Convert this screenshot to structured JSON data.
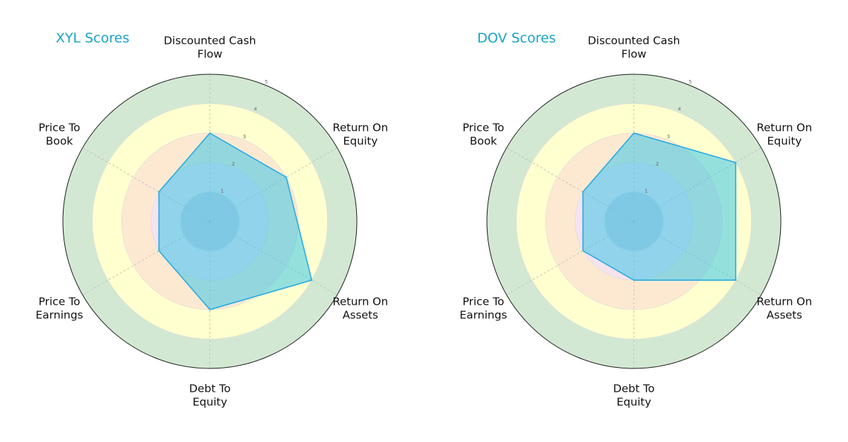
{
  "chart_data": [
    {
      "type": "radar",
      "title": "XYL Scores",
      "categories": [
        "Discounted Cash\nFlow",
        "Return On\nEquity",
        "Return On\nAssets",
        "Debt To\nEquity",
        "Price To\nEarnings",
        "Price To\nBook"
      ],
      "values": [
        3,
        3,
        4,
        3,
        2,
        2
      ],
      "rlim": [
        0,
        5
      ],
      "r_ticks": [
        "1",
        "2",
        "3",
        "4",
        "5"
      ],
      "grid": true,
      "colors": {
        "line": "#29abe2",
        "fill": "#3cc6e8",
        "band_1": "#c5c5dd",
        "band_2": "#f6e3ee",
        "band_3": "#fde9d2",
        "band_4": "#ffffcf",
        "band_5": "#d3e8d3",
        "title": "#1aa3c8"
      }
    },
    {
      "type": "radar",
      "title": "DOV Scores",
      "categories": [
        "Discounted Cash\nFlow",
        "Return On\nEquity",
        "Return On\nAssets",
        "Debt To\nEquity",
        "Price To\nEarnings",
        "Price To\nBook"
      ],
      "values": [
        3,
        4,
        4,
        2,
        2,
        2
      ],
      "rlim": [
        0,
        5
      ],
      "r_ticks": [
        "1",
        "2",
        "3",
        "4",
        "5"
      ],
      "grid": true,
      "colors": {
        "line": "#29abe2",
        "fill": "#3cc6e8",
        "band_1": "#c5c5dd",
        "band_2": "#f6e3ee",
        "band_3": "#fde9d2",
        "band_4": "#ffffcf",
        "band_5": "#d3e8d3",
        "title": "#1aa3c8"
      }
    }
  ]
}
